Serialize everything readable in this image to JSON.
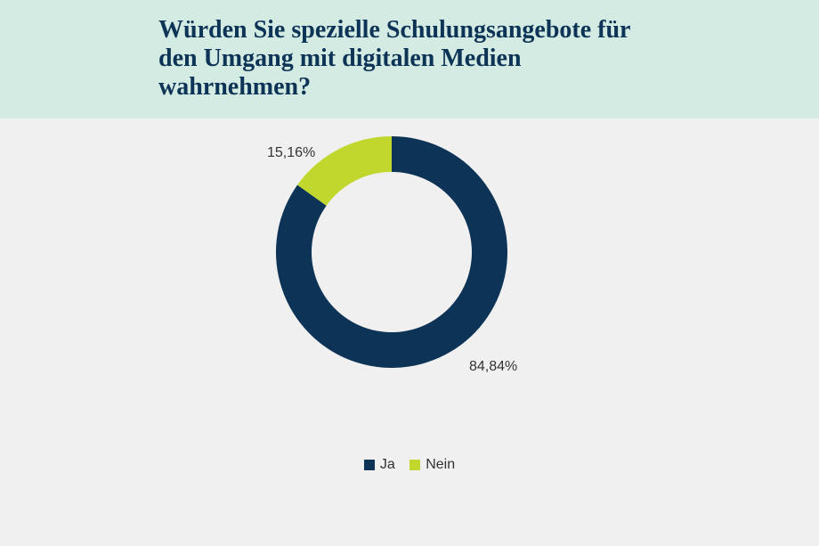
{
  "header": {
    "title": "Würden Sie spezielle Schulungsangebote für den Umgang mit digitalen Medien wahrnehmen?",
    "background_color": "#d3ebe2",
    "title_color": "#0d3356",
    "title_fontsize": 28,
    "title_font": "serif"
  },
  "chart": {
    "type": "donut",
    "background_color": "#f0f0f0",
    "outer_radius": 130,
    "inner_radius": 90,
    "start_angle_deg": 0,
    "slices": [
      {
        "key": "ja",
        "label": "Ja",
        "value": 84.84,
        "display": "84,84%",
        "color": "#0d3356"
      },
      {
        "key": "nein",
        "label": "Nein",
        "value": 15.16,
        "display": "15,16%",
        "color": "#c2d72e"
      }
    ],
    "label_color": "#333333",
    "label_fontsize": 16,
    "legend": {
      "position": "bottom",
      "items": [
        {
          "label": "Ja",
          "color": "#0d3356"
        },
        {
          "label": "Nein",
          "color": "#c2d72e"
        }
      ]
    }
  }
}
